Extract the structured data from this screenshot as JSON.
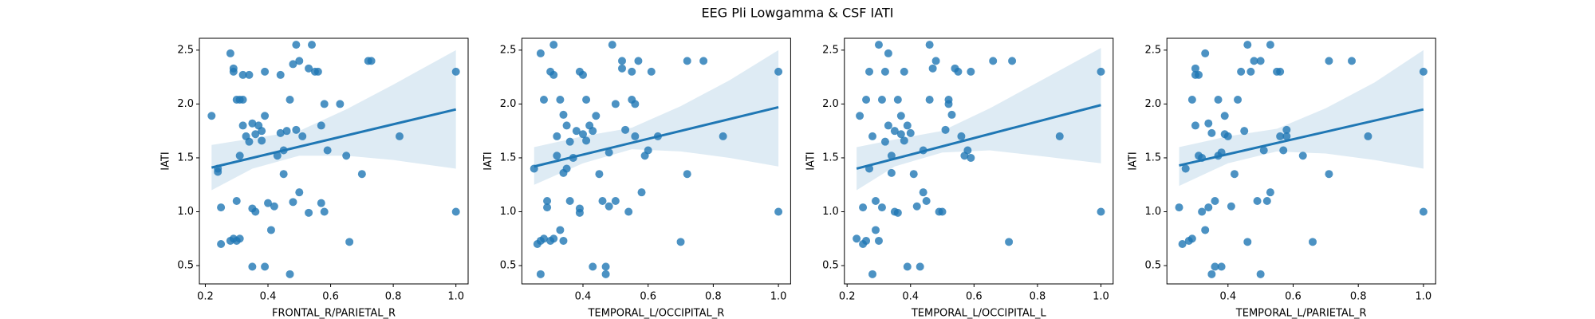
{
  "title": "EEG Pli Lowgamma & CSF IATI",
  "chart_data": [
    {
      "type": "scatter",
      "x_label": "FRONTAL_R/PARIETAL_R",
      "y_label": "IATI",
      "color": "#1f77b4",
      "xlim": [
        0.181,
        1.039
      ],
      "ylim": [
        0.33,
        2.61
      ],
      "xticks": [
        0.2,
        0.4,
        0.6,
        0.8,
        {
          "value": 1,
          "label": "1.0"
        }
      ],
      "yticks": [
        0.5,
        {
          "value": 1,
          "label": "1.0"
        },
        1.5,
        {
          "value": 2,
          "label": "2.0"
        },
        2.5
      ],
      "x": [
        0.22,
        0.24,
        0.24,
        0.25,
        0.25,
        0.28,
        0.29,
        0.29,
        0.28,
        0.29,
        0.3,
        0.31,
        0.3,
        0.3,
        0.31,
        0.32,
        0.31,
        0.32,
        0.32,
        0.34,
        0.33,
        0.34,
        0.35,
        0.35,
        0.35,
        0.36,
        0.36,
        0.37,
        0.38,
        0.38,
        0.39,
        0.39,
        0.39,
        0.4,
        0.41,
        0.42,
        0.43,
        0.44,
        0.44,
        0.45,
        0.45,
        0.46,
        0.47,
        0.47,
        0.48,
        0.48,
        0.49,
        0.49,
        0.5,
        0.5,
        0.51,
        0.53,
        0.53,
        0.54,
        0.55,
        0.56,
        0.57,
        0.57,
        0.58,
        0.58,
        0.59,
        0.63,
        0.65,
        0.66,
        0.7,
        0.72,
        0.73,
        0.82,
        1.0,
        1.0
      ],
      "values": [
        1.89,
        1.37,
        1.4,
        0.7,
        1.04,
        2.47,
        2.33,
        2.3,
        0.73,
        0.75,
        0.73,
        0.75,
        1.1,
        2.04,
        2.04,
        2.04,
        1.52,
        1.8,
        2.27,
        2.27,
        1.7,
        1.65,
        1.82,
        1.03,
        0.49,
        1.0,
        1.72,
        1.8,
        1.75,
        1.66,
        2.3,
        0.49,
        1.89,
        1.08,
        0.83,
        1.05,
        1.52,
        1.73,
        2.27,
        1.35,
        1.57,
        1.75,
        0.42,
        2.04,
        2.37,
        1.09,
        2.55,
        1.76,
        1.18,
        2.4,
        1.7,
        0.99,
        2.33,
        2.55,
        2.3,
        2.3,
        1.8,
        1.08,
        1.0,
        2.0,
        1.57,
        2.0,
        1.52,
        0.72,
        1.35,
        2.4,
        2.4,
        1.7,
        2.3,
        1.0
      ],
      "fit": {
        "x": [
          0.22,
          1.0
        ],
        "values": [
          1.41,
          1.95
        ]
      },
      "band": {
        "x": [
          0.22,
          0.35,
          0.5,
          0.65,
          0.8,
          1.0
        ],
        "lower": [
          1.2,
          1.4,
          1.52,
          1.52,
          1.48,
          1.4
        ],
        "upper": [
          1.62,
          1.68,
          1.75,
          1.95,
          2.18,
          2.5
        ]
      }
    },
    {
      "type": "scatter",
      "x_label": "TEMPORAL_L/OCCIPITAL_R",
      "y_label": "IATI",
      "color": "#1f77b4",
      "xlim": [
        0.2125,
        1.0375
      ],
      "ylim": [
        0.33,
        2.61
      ],
      "xticks": [
        0.4,
        0.6,
        0.8,
        {
          "value": 1,
          "label": "1.0"
        }
      ],
      "yticks": [
        0.5,
        {
          "value": 1,
          "label": "1.0"
        },
        1.5,
        {
          "value": 2,
          "label": "2.0"
        },
        2.5
      ],
      "x": [
        0.25,
        0.26,
        0.27,
        0.27,
        0.27,
        0.28,
        0.28,
        0.29,
        0.29,
        0.3,
        0.3,
        0.31,
        0.31,
        0.31,
        0.32,
        0.32,
        0.33,
        0.33,
        0.34,
        0.34,
        0.34,
        0.35,
        0.35,
        0.36,
        0.36,
        0.37,
        0.38,
        0.39,
        0.39,
        0.39,
        0.4,
        0.4,
        0.41,
        0.41,
        0.42,
        0.43,
        0.43,
        0.44,
        0.45,
        0.46,
        0.47,
        0.47,
        0.48,
        0.48,
        0.49,
        0.5,
        0.5,
        0.52,
        0.52,
        0.53,
        0.54,
        0.55,
        0.55,
        0.56,
        0.56,
        0.57,
        0.58,
        0.59,
        0.6,
        0.61,
        0.63,
        0.7,
        0.72,
        0.72,
        0.77,
        0.83,
        1.0,
        1.0
      ],
      "values": [
        1.4,
        0.7,
        0.73,
        0.42,
        2.47,
        2.04,
        0.75,
        1.1,
        1.04,
        2.3,
        0.73,
        2.55,
        2.27,
        0.75,
        1.7,
        1.52,
        2.04,
        0.83,
        0.73,
        1.9,
        1.36,
        1.8,
        1.4,
        1.1,
        1.65,
        1.5,
        1.75,
        2.3,
        1.03,
        0.99,
        2.27,
        1.72,
        1.66,
        2.04,
        1.8,
        0.49,
        1.75,
        1.89,
        1.35,
        1.1,
        0.49,
        0.42,
        1.05,
        1.55,
        2.55,
        2.0,
        1.1,
        2.4,
        2.33,
        1.76,
        1.0,
        2.04,
        2.3,
        2.0,
        1.7,
        2.4,
        1.18,
        1.52,
        1.57,
        2.3,
        1.7,
        0.72,
        2.4,
        1.35,
        2.4,
        1.7,
        2.3,
        1.0
      ],
      "fit": {
        "x": [
          0.25,
          1.0
        ],
        "values": [
          1.42,
          1.97
        ]
      },
      "band": {
        "x": [
          0.25,
          0.4,
          0.55,
          0.7,
          0.85,
          1.0
        ],
        "lower": [
          1.25,
          1.45,
          1.58,
          1.56,
          1.5,
          1.42
        ],
        "upper": [
          1.6,
          1.7,
          1.78,
          1.98,
          2.22,
          2.5
        ]
      }
    },
    {
      "type": "scatter",
      "x_label": "TEMPORAL_L/OCCIPITAL_L",
      "y_label": "IATI",
      "color": "#1f77b4",
      "xlim": [
        0.1915,
        1.0385
      ],
      "ylim": [
        0.33,
        2.61
      ],
      "xticks": [
        0.2,
        0.4,
        0.6,
        0.8,
        {
          "value": 1,
          "label": "1.0"
        }
      ],
      "yticks": [
        0.5,
        {
          "value": 1,
          "label": "1.0"
        },
        1.5,
        {
          "value": 2,
          "label": "2.0"
        },
        2.5
      ],
      "x": [
        0.23,
        0.24,
        0.25,
        0.25,
        0.26,
        0.26,
        0.27,
        0.27,
        0.28,
        0.28,
        0.29,
        0.29,
        0.3,
        0.3,
        0.31,
        0.31,
        0.32,
        0.32,
        0.33,
        0.33,
        0.34,
        0.34,
        0.35,
        0.35,
        0.36,
        0.36,
        0.37,
        0.37,
        0.38,
        0.38,
        0.39,
        0.39,
        0.4,
        0.41,
        0.42,
        0.43,
        0.44,
        0.44,
        0.45,
        0.46,
        0.46,
        0.47,
        0.48,
        0.49,
        0.5,
        0.51,
        0.52,
        0.52,
        0.53,
        0.54,
        0.55,
        0.56,
        0.57,
        0.58,
        0.59,
        0.59,
        0.66,
        0.71,
        0.72,
        0.87,
        1.0,
        1.0
      ],
      "values": [
        0.75,
        1.89,
        0.7,
        1.04,
        0.73,
        2.04,
        2.3,
        1.4,
        0.42,
        1.7,
        1.1,
        0.83,
        2.55,
        0.73,
        1.04,
        2.04,
        2.3,
        1.65,
        1.8,
        2.47,
        1.36,
        1.52,
        1.75,
        1.0,
        2.04,
        0.99,
        1.72,
        1.89,
        1.66,
        2.3,
        1.8,
        0.49,
        1.73,
        1.35,
        1.05,
        0.49,
        1.18,
        1.57,
        1.1,
        2.55,
        2.04,
        2.33,
        2.4,
        1.0,
        1.0,
        1.76,
        2.04,
        2.0,
        1.9,
        2.33,
        2.3,
        1.7,
        1.52,
        1.57,
        2.3,
        1.5,
        2.4,
        0.72,
        2.4,
        1.7,
        2.3,
        1.0
      ],
      "fit": {
        "x": [
          0.23,
          1.0
        ],
        "values": [
          1.4,
          1.99
        ]
      },
      "band": {
        "x": [
          0.23,
          0.35,
          0.5,
          0.65,
          0.8,
          1.0
        ],
        "lower": [
          1.2,
          1.42,
          1.55,
          1.57,
          1.52,
          1.45
        ],
        "upper": [
          1.6,
          1.67,
          1.75,
          1.96,
          2.2,
          2.52
        ]
      }
    },
    {
      "type": "scatter",
      "x_label": "TEMPORAL_L/PARIETAL_R",
      "y_label": "IATI",
      "color": "#1f77b4",
      "xlim": [
        0.2125,
        1.0375
      ],
      "ylim": [
        0.33,
        2.61
      ],
      "xticks": [
        0.4,
        0.6,
        0.8,
        {
          "value": 1,
          "label": "1.0"
        }
      ],
      "yticks": [
        0.5,
        {
          "value": 1,
          "label": "1.0"
        },
        1.5,
        {
          "value": 2,
          "label": "2.0"
        },
        2.5
      ],
      "x": [
        0.25,
        0.26,
        0.27,
        0.28,
        0.29,
        0.29,
        0.3,
        0.3,
        0.3,
        0.31,
        0.31,
        0.32,
        0.32,
        0.33,
        0.33,
        0.34,
        0.34,
        0.35,
        0.35,
        0.36,
        0.36,
        0.37,
        0.37,
        0.38,
        0.38,
        0.39,
        0.39,
        0.4,
        0.41,
        0.42,
        0.43,
        0.44,
        0.45,
        0.46,
        0.46,
        0.47,
        0.48,
        0.49,
        0.5,
        0.5,
        0.51,
        0.52,
        0.53,
        0.53,
        0.55,
        0.56,
        0.56,
        0.57,
        0.58,
        0.58,
        0.63,
        0.66,
        0.71,
        0.71,
        0.78,
        0.83,
        1.0,
        1.0
      ],
      "values": [
        1.04,
        0.7,
        1.4,
        0.73,
        0.75,
        2.04,
        2.33,
        2.27,
        1.8,
        1.52,
        2.27,
        1.0,
        1.5,
        2.47,
        0.83,
        1.04,
        1.82,
        0.42,
        1.73,
        1.1,
        0.49,
        1.52,
        2.04,
        1.55,
        0.49,
        1.89,
        1.72,
        1.7,
        1.05,
        1.35,
        2.04,
        2.3,
        1.75,
        2.55,
        0.72,
        2.3,
        2.4,
        1.1,
        2.4,
        0.42,
        1.57,
        1.1,
        2.55,
        1.18,
        2.3,
        2.3,
        1.7,
        1.57,
        1.7,
        1.76,
        1.52,
        0.72,
        2.4,
        1.35,
        2.4,
        1.7,
        2.3,
        1.0
      ],
      "fit": {
        "x": [
          0.25,
          1.0
        ],
        "values": [
          1.43,
          1.95
        ]
      },
      "band": {
        "x": [
          0.25,
          0.4,
          0.55,
          0.7,
          0.85,
          1.0
        ],
        "lower": [
          1.24,
          1.45,
          1.56,
          1.54,
          1.48,
          1.4
        ],
        "upper": [
          1.6,
          1.7,
          1.77,
          1.96,
          2.2,
          2.5
        ]
      }
    }
  ]
}
